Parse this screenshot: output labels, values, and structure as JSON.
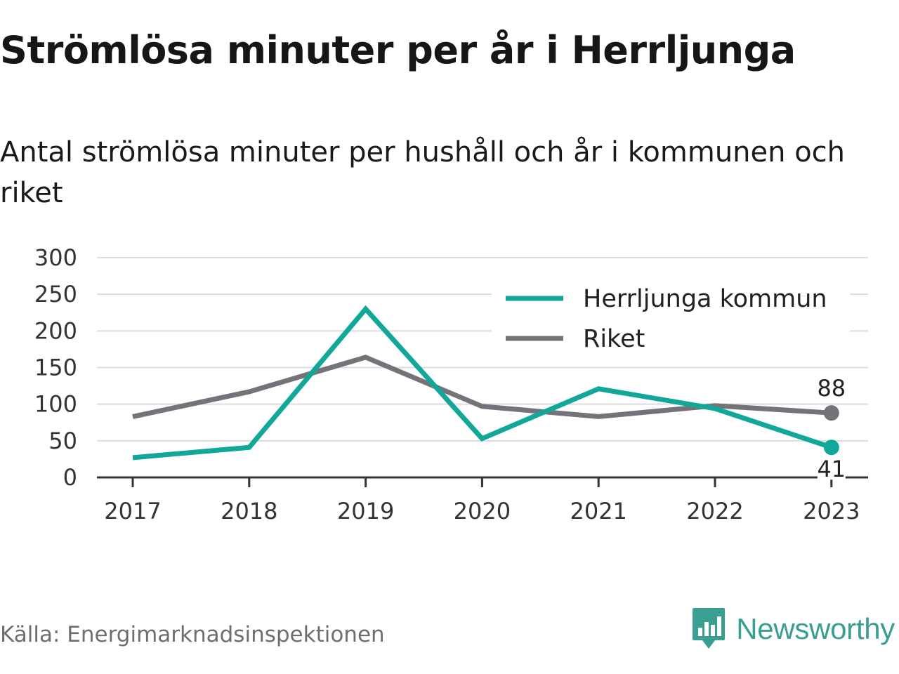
{
  "header": {
    "title": "Strömlösa minuter per år i Herrljunga",
    "subtitle": "Antal strömlösa minuter per hushåll och år i kommunen och riket"
  },
  "footer": {
    "source": "Källa: Energimarknadsinspektionen",
    "brand": "Newsworthy",
    "brand_icon": "bar-chart-speech-bubble-icon"
  },
  "colors": {
    "herrljunga": "#12a899",
    "riket": "#74737a",
    "grid": "#dcdcdc",
    "axis": "#333333",
    "brand": "#3a9e91"
  },
  "chart_data": {
    "type": "line",
    "title": "Strömlösa minuter per år i Herrljunga",
    "subtitle": "Antal strömlösa minuter per hushåll och år i kommunen och riket",
    "x": [
      "2017",
      "2018",
      "2019",
      "2020",
      "2021",
      "2022",
      "2023"
    ],
    "ylim": [
      0,
      300
    ],
    "yticks": [
      0,
      50,
      100,
      150,
      200,
      250,
      300
    ],
    "grid": true,
    "legend_position": "top-right",
    "series": [
      {
        "name": "Herrljunga kommun",
        "color": "#12a899",
        "values": [
          27,
          41,
          230,
          53,
          121,
          94,
          41
        ],
        "end_label": "41"
      },
      {
        "name": "Riket",
        "color": "#74737a",
        "values": [
          83,
          117,
          164,
          97,
          83,
          98,
          88
        ],
        "end_label": "88"
      }
    ]
  }
}
